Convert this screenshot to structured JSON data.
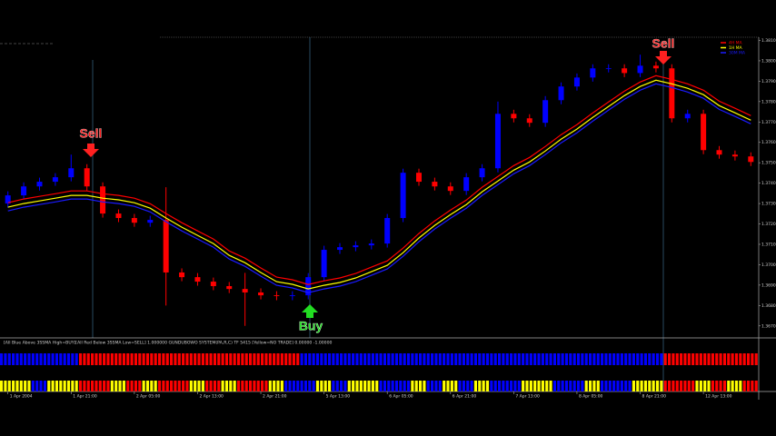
{
  "chart_data": [
    {
      "type": "candlestick",
      "categories": [
        "1 Apr 2004",
        null,
        null,
        null,
        "1 Apr 21:00",
        null,
        null,
        null,
        "2 Apr 05:00",
        null,
        null,
        null,
        "2 Apr 13:00",
        null,
        null,
        null,
        "2 Apr 21:00",
        null,
        null,
        null,
        "5 Apr 13:00",
        null,
        null,
        null,
        "6 Apr 05:00",
        null,
        null,
        null,
        "6 Apr 21:00",
        null,
        null,
        null,
        "7 Apr 13:00",
        null,
        null,
        null,
        "8 Apr 05:00",
        null,
        null,
        null,
        "8 Apr 21:00",
        null,
        null,
        null,
        "12 Apr 13:00",
        null,
        null,
        null
      ],
      "open": [
        1.373,
        1.3734,
        1.37384,
        1.37407,
        1.37429,
        1.37473,
        1.37384,
        1.37251,
        1.37229,
        1.37206,
        1.3722,
        1.36962,
        1.36939,
        1.36917,
        1.36895,
        1.36881,
        1.36864,
        1.3685,
        1.36846,
        1.3685,
        1.36939,
        1.37073,
        1.37086,
        1.37095,
        1.37104,
        1.37229,
        1.37451,
        1.37407,
        1.37384,
        1.37362,
        1.37429,
        1.37473,
        1.3774,
        1.37718,
        1.37696,
        1.37807,
        1.37874,
        1.37918,
        1.37963,
        1.37963,
        1.3794,
        1.37976,
        1.37963,
        1.37718,
        1.3774,
        1.37562,
        1.3754,
        1.37531
      ],
      "high": [
        1.3736,
        1.37404,
        1.37427,
        1.37449,
        1.3754,
        1.37493,
        1.37404,
        1.37271,
        1.37249,
        1.3724,
        1.3738,
        1.36982,
        1.36959,
        1.36937,
        1.36915,
        1.3696,
        1.36884,
        1.3687,
        1.3687,
        1.36959,
        1.37093,
        1.37106,
        1.37115,
        1.37124,
        1.37249,
        1.37471,
        1.37471,
        1.37427,
        1.37404,
        1.37449,
        1.37493,
        1.378,
        1.3776,
        1.37738,
        1.37827,
        1.37894,
        1.37938,
        1.37983,
        1.37983,
        1.37983,
        1.3803,
        1.37996,
        1.37983,
        1.3776,
        1.3776,
        1.37582,
        1.3756,
        1.37551
      ],
      "low": [
        1.3728,
        1.3732,
        1.37364,
        1.37387,
        1.37409,
        1.37364,
        1.37231,
        1.37209,
        1.37186,
        1.37186,
        1.368,
        1.36919,
        1.36897,
        1.36875,
        1.36861,
        1.367,
        1.3683,
        1.36826,
        1.36826,
        1.3683,
        1.36919,
        1.37053,
        1.37066,
        1.37075,
        1.37084,
        1.37209,
        1.37387,
        1.37364,
        1.37342,
        1.37342,
        1.37409,
        1.37453,
        1.37698,
        1.37676,
        1.37676,
        1.37787,
        1.37854,
        1.37898,
        1.37943,
        1.3792,
        1.3792,
        1.37943,
        1.37698,
        1.37698,
        1.37542,
        1.3752,
        1.37511,
        1.37484
      ],
      "close": [
        1.3734,
        1.37384,
        1.37407,
        1.37429,
        1.37473,
        1.37384,
        1.37251,
        1.37229,
        1.37206,
        1.3722,
        1.36962,
        1.36939,
        1.36917,
        1.36895,
        1.36881,
        1.36864,
        1.3685,
        1.36846,
        1.3685,
        1.36939,
        1.37073,
        1.37086,
        1.37095,
        1.37104,
        1.37229,
        1.37451,
        1.37407,
        1.37384,
        1.37362,
        1.37429,
        1.37473,
        1.3774,
        1.37718,
        1.37696,
        1.37807,
        1.37874,
        1.37918,
        1.37963,
        1.37963,
        1.3794,
        1.37976,
        1.37963,
        1.37718,
        1.3774,
        1.37562,
        1.3754,
        1.37531,
        1.37504
      ],
      "up_color": "#0000ff",
      "down_color": "#ff0000",
      "series": [
        {
          "name": "4H MA",
          "color": "#ff0000",
          "values": [
            1.37304,
            1.37322,
            1.37335,
            1.37348,
            1.37362,
            1.37362,
            1.37348,
            1.3734,
            1.37326,
            1.37299,
            1.37251,
            1.37206,
            1.37166,
            1.37126,
            1.37068,
            1.37032,
            1.36984,
            1.36939,
            1.36926,
            1.36903,
            1.36921,
            1.36935,
            1.36957,
            1.36988,
            1.37019,
            1.37081,
            1.37153,
            1.37215,
            1.37268,
            1.37317,
            1.3738,
            1.37433,
            1.37486,
            1.37526,
            1.3758,
            1.37638,
            1.37687,
            1.37744,
            1.37798,
            1.37851,
            1.37896,
            1.37927,
            1.37909,
            1.37887,
            1.37856,
            1.37802,
            1.37767,
            1.37731
          ]
        },
        {
          "name": "1H MA",
          "color": "#ffff00",
          "values": [
            1.37282,
            1.373,
            1.37313,
            1.37326,
            1.3734,
            1.3734,
            1.37326,
            1.37318,
            1.37304,
            1.37277,
            1.37229,
            1.37184,
            1.37144,
            1.37104,
            1.37046,
            1.3701,
            1.36962,
            1.36917,
            1.36904,
            1.36881,
            1.36899,
            1.36913,
            1.36935,
            1.36966,
            1.36997,
            1.37059,
            1.37131,
            1.37193,
            1.37246,
            1.37295,
            1.37358,
            1.37411,
            1.37464,
            1.37504,
            1.37558,
            1.37616,
            1.37665,
            1.37722,
            1.37776,
            1.37829,
            1.37874,
            1.37905,
            1.37887,
            1.37865,
            1.37834,
            1.3778,
            1.37745,
            1.37709
          ]
        },
        {
          "name": "30M MA",
          "color": "#1a1aff",
          "values": [
            1.37264,
            1.37282,
            1.37295,
            1.37308,
            1.37322,
            1.37322,
            1.37308,
            1.373,
            1.37286,
            1.37259,
            1.37211,
            1.37166,
            1.37126,
            1.37086,
            1.37028,
            1.36992,
            1.36944,
            1.36899,
            1.36886,
            1.36863,
            1.36881,
            1.36895,
            1.36917,
            1.36948,
            1.36979,
            1.37041,
            1.37113,
            1.37175,
            1.37228,
            1.37277,
            1.3734,
            1.37393,
            1.37446,
            1.37486,
            1.3754,
            1.37598,
            1.37647,
            1.37704,
            1.37758,
            1.37811,
            1.37856,
            1.37887,
            1.37869,
            1.37847,
            1.37816,
            1.37762,
            1.37727,
            1.37691
          ]
        }
      ],
      "ylim": [
        1.3665,
        1.3812
      ],
      "yticks": [
        {
          "value": 1.367,
          "label": "1.36700"
        },
        {
          "value": 1.368,
          "label": "1.36800"
        },
        {
          "value": 1.369,
          "label": "1.36900"
        },
        {
          "value": 1.37,
          "label": "1.37000"
        },
        {
          "value": 1.371,
          "label": "1.37100"
        },
        {
          "value": 1.372,
          "label": "1.37200"
        },
        {
          "value": 1.373,
          "label": "1.37300"
        },
        {
          "value": 1.374,
          "label": "1.37400"
        },
        {
          "value": 1.375,
          "label": "1.37500"
        },
        {
          "value": 1.376,
          "label": "1.37600"
        },
        {
          "value": 1.377,
          "label": "1.37700"
        },
        {
          "value": 1.378,
          "label": "1.37800"
        },
        {
          "value": 1.379,
          "label": "1.37900"
        },
        {
          "value": 1.38,
          "label": "1.38000"
        },
        {
          "value": 1.381,
          "label": "1.38100"
        }
      ],
      "annotations": [
        {
          "text": "Sell",
          "color": "#ff2020"
        },
        {
          "text": "Buy",
          "color": "#22dd22"
        },
        {
          "text": "Sell",
          "color": "#ff2020"
        }
      ]
    },
    {
      "type": "signal",
      "title": "[All Blue Above 3SSMA High=BUY][All Red Below 3SSMA Low=SELL] 1.000000 GUNDUBOWO SYSTEM(PA,R,C) TF 5415 [Yellow=NO TRADE] 0.00000 -1.00000",
      "series": [
        {
          "values": [
            1,
            1,
            1,
            1,
            1,
            -1,
            -1,
            -1,
            -1,
            -1,
            -1,
            -1,
            -1,
            -1,
            -1,
            -1,
            -1,
            -1,
            -1,
            1,
            1,
            1,
            1,
            1,
            1,
            1,
            1,
            1,
            1,
            1,
            1,
            1,
            1,
            1,
            1,
            1,
            1,
            1,
            1,
            1,
            1,
            1,
            -1,
            -1,
            -1,
            -1,
            -1,
            -1
          ]
        },
        {
          "values": [
            0,
            0,
            1,
            0,
            0,
            -1,
            -1,
            0,
            -1,
            0,
            -1,
            -1,
            0,
            -1,
            0,
            -1,
            -1,
            0,
            1,
            1,
            0,
            1,
            0,
            0,
            1,
            1,
            0,
            1,
            0,
            1,
            0,
            1,
            1,
            0,
            0,
            1,
            1,
            0,
            1,
            1,
            0,
            0,
            -1,
            -1,
            0,
            -1,
            0,
            -1
          ]
        }
      ],
      "colors": {
        "buy": "#0000ff",
        "sell": "#ff0000",
        "neutral": "#ffff00"
      }
    }
  ]
}
